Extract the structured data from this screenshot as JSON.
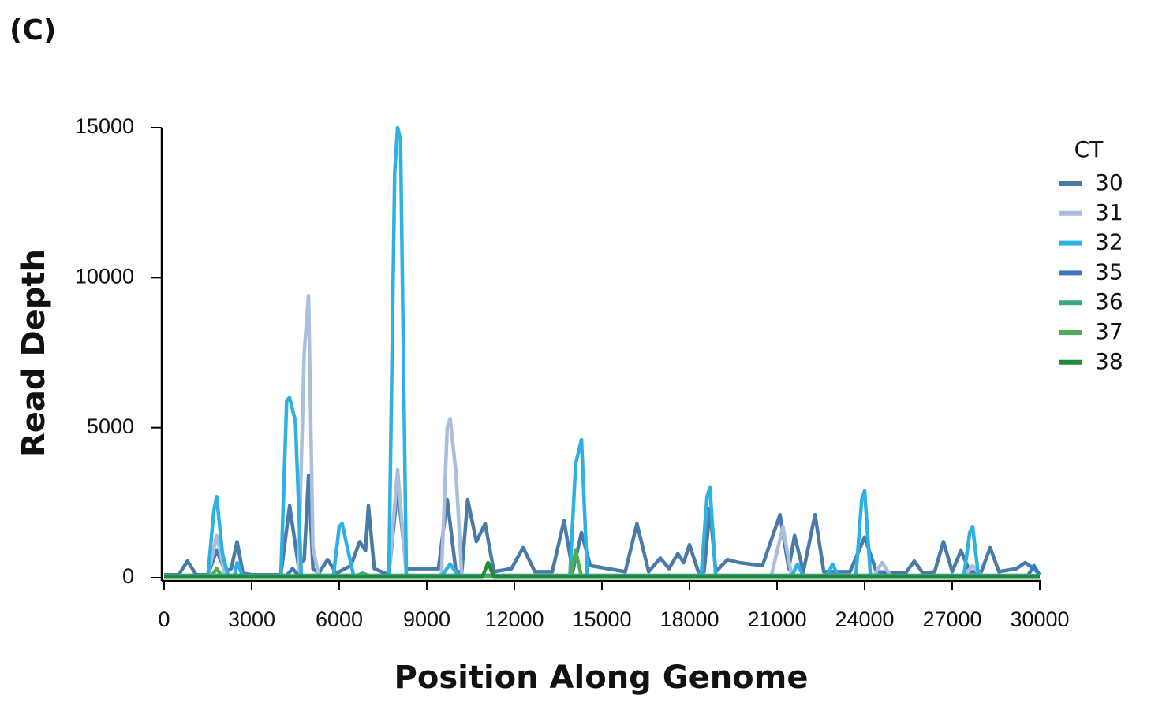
{
  "panel_label": "(C)",
  "chart_data": {
    "type": "line",
    "xlabel": "Position Along Genome",
    "ylabel": "Read Depth",
    "legend_title": "CT",
    "legend": "upper right",
    "xlim": [
      0,
      30000
    ],
    "xticks": [
      0,
      3000,
      6000,
      9000,
      12000,
      15000,
      18000,
      21000,
      24000,
      27000,
      30000
    ],
    "ylim": [
      0,
      15000
    ],
    "yticks": [
      0,
      5000,
      10000,
      15000
    ],
    "series": [
      {
        "name": "30",
        "color": "#4a7ba8",
        "x": [
          0,
          500,
          800,
          1100,
          1500,
          1800,
          2100,
          2300,
          2500,
          2700,
          3000,
          4000,
          4300,
          4600,
          4800,
          4950,
          5100,
          5300,
          5600,
          5900,
          6400,
          6700,
          6900,
          7000,
          7200,
          7700,
          8000,
          8300,
          9000,
          9400,
          9700,
          10000,
          10200,
          10400,
          10700,
          11000,
          11300,
          11900,
          12300,
          12700,
          13300,
          13700,
          14000,
          14300,
          14600,
          15800,
          16200,
          16600,
          17000,
          17300,
          17600,
          17800,
          18000,
          18300,
          18500,
          18700,
          18900,
          19300,
          19700,
          20500,
          21100,
          21400,
          21600,
          21900,
          22300,
          22600,
          23500,
          24000,
          24400,
          25400,
          25700,
          26000,
          26400,
          26700,
          27000,
          27300,
          27600,
          28000,
          28300,
          28600,
          29200,
          29500,
          29800,
          30000
        ],
        "values": [
          100,
          100,
          550,
          100,
          100,
          900,
          200,
          300,
          1200,
          150,
          100,
          100,
          2400,
          400,
          600,
          3400,
          300,
          150,
          600,
          150,
          400,
          1200,
          900,
          2400,
          300,
          100,
          3000,
          300,
          300,
          300,
          2600,
          200,
          200,
          2600,
          1200,
          1800,
          200,
          300,
          1000,
          200,
          200,
          1900,
          200,
          1500,
          400,
          200,
          1800,
          200,
          650,
          300,
          800,
          500,
          1100,
          200,
          200,
          2300,
          200,
          600,
          500,
          400,
          2100,
          300,
          1400,
          200,
          2100,
          200,
          200,
          1350,
          200,
          150,
          550,
          150,
          200,
          1200,
          200,
          900,
          200,
          200,
          1000,
          200,
          300,
          500,
          300,
          100
        ]
      },
      {
        "name": "31",
        "color": "#a9bfdb",
        "x": [
          0,
          1500,
          1800,
          2100,
          4600,
          4800,
          4950,
          5100,
          5300,
          7700,
          8000,
          8300,
          9500,
          9700,
          9800,
          10000,
          10200,
          20800,
          21200,
          21500,
          24300,
          24600,
          24900,
          27400,
          27700,
          28000,
          30000
        ],
        "values": [
          50,
          50,
          1400,
          50,
          50,
          7500,
          9400,
          1000,
          50,
          50,
          3600,
          50,
          50,
          5000,
          5300,
          3500,
          50,
          50,
          1700,
          50,
          50,
          500,
          50,
          50,
          400,
          50,
          50
        ]
      },
      {
        "name": "32",
        "color": "#2cb1e2",
        "x": [
          0,
          1500,
          1700,
          1800,
          2000,
          2200,
          2400,
          2500,
          2700,
          4000,
          4200,
          4300,
          4500,
          4700,
          5800,
          6000,
          6100,
          6300,
          6500,
          7700,
          7900,
          8000,
          8100,
          8300,
          9500,
          9800,
          10100,
          13900,
          14100,
          14300,
          14500,
          18400,
          18600,
          18700,
          18900,
          21500,
          21700,
          21900,
          22700,
          22900,
          23100,
          23700,
          23900,
          24000,
          24200,
          27400,
          27600,
          27700,
          27900,
          30000
        ],
        "values": [
          50,
          50,
          2200,
          2700,
          800,
          50,
          50,
          500,
          50,
          50,
          5900,
          6000,
          5200,
          50,
          50,
          1700,
          1800,
          900,
          50,
          50,
          13500,
          15000,
          14600,
          50,
          50,
          450,
          50,
          50,
          3800,
          4600,
          50,
          50,
          2700,
          3000,
          50,
          50,
          450,
          50,
          50,
          450,
          50,
          50,
          2600,
          2900,
          50,
          50,
          1500,
          1700,
          50,
          50
        ]
      },
      {
        "name": "35",
        "color": "#3a78bf",
        "x": [
          0,
          4200,
          4400,
          4600,
          29600,
          29800,
          30000
        ],
        "values": [
          80,
          80,
          300,
          80,
          80,
          400,
          80
        ]
      },
      {
        "name": "36",
        "color": "#3aa87e",
        "x": [
          0,
          6500,
          6800,
          7100,
          30000
        ],
        "values": [
          40,
          40,
          150,
          40,
          40
        ]
      },
      {
        "name": "37",
        "color": "#4caf50",
        "x": [
          0,
          1600,
          1800,
          2000,
          13900,
          14100,
          14300,
          30000
        ],
        "values": [
          30,
          30,
          300,
          30,
          30,
          900,
          30,
          30
        ]
      },
      {
        "name": "38",
        "color": "#1e8c3a",
        "x": [
          0,
          10900,
          11100,
          11300,
          30000
        ],
        "values": [
          20,
          20,
          500,
          20,
          20
        ]
      }
    ]
  }
}
